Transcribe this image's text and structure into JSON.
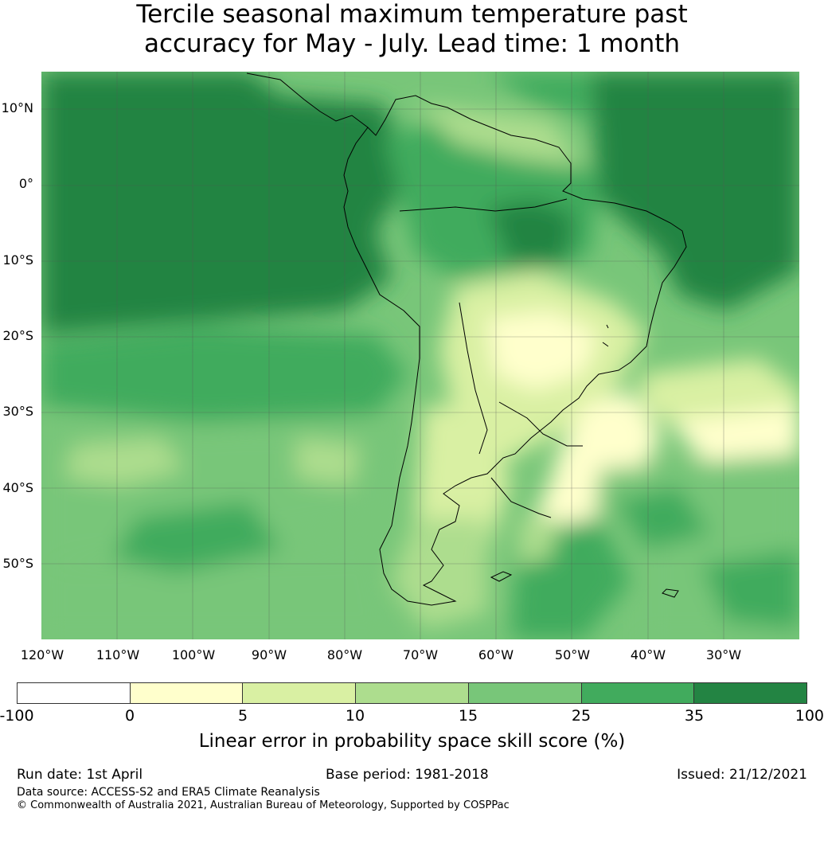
{
  "title": {
    "line1": "Tercile seasonal maximum temperature past",
    "line2": "accuracy for May - July. Lead time: 1 month"
  },
  "map": {
    "lat_labels": [
      "10°N",
      "0°",
      "10°S",
      "20°S",
      "30°S",
      "40°S",
      "50°S"
    ],
    "lon_labels": [
      "120°W",
      "110°W",
      "100°W",
      "90°W",
      "80°W",
      "70°W",
      "60°W",
      "50°W",
      "40°W",
      "30°W"
    ],
    "extent": {
      "lon": [
        -125,
        -25
      ],
      "lat": [
        -60,
        15
      ]
    },
    "gridlines": true
  },
  "colorbar": {
    "ticks": [
      "-100",
      "0",
      "5",
      "10",
      "15",
      "25",
      "35",
      "100"
    ],
    "colors": [
      "#ffffff",
      "#ffffcc",
      "#d9f0a3",
      "#addd8e",
      "#78c679",
      "#41ab5d",
      "#238443"
    ],
    "label": "Linear error in probability space skill score (%)"
  },
  "footer": {
    "run_date": "Run date: 1st April",
    "base_period": "Base period: 1981-2018",
    "issued": "Issued: 21/12/2021",
    "data_source": "Data source: ACCESS-S2 and ERA5 Climate Reanalysis",
    "copyright": "© Commonwealth of Australia 2021, Australian Bureau of Meteorology, Supported by COSPPac"
  }
}
